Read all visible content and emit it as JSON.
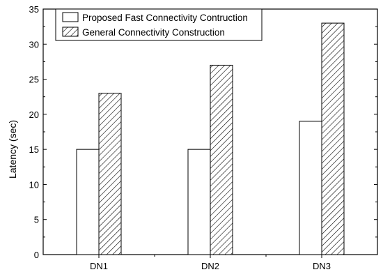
{
  "chart_data": {
    "type": "bar",
    "categories": [
      "DN1",
      "DN2",
      "DN3"
    ],
    "series": [
      {
        "name": "Proposed Fast Connectivity Contruction",
        "values": [
          15,
          15,
          19
        ],
        "fill": "#ffffff",
        "pattern": "none"
      },
      {
        "name": "General Connectivity Construction",
        "values": [
          23,
          27,
          33
        ],
        "fill": "#ffffff",
        "pattern": "diagonal-hatch"
      }
    ],
    "title": "",
    "xlabel": "",
    "ylabel": "Latency (sec)",
    "ylim": [
      0,
      35
    ],
    "yticks": [
      0,
      5,
      10,
      15,
      20,
      25,
      30,
      35
    ],
    "grid": false,
    "legend_position": "top-left",
    "colors": {
      "axis": "#000000",
      "bar_stroke": "#000000",
      "background": "#ffffff"
    }
  }
}
